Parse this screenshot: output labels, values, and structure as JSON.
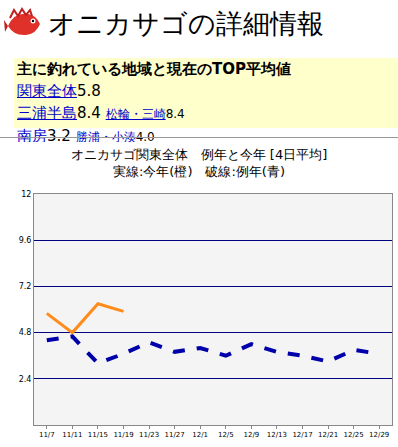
{
  "header": {
    "title": "オニカサゴの詳細情報"
  },
  "summary": {
    "heading": "主に釣れている地域と現在のTOP平均値",
    "rows": [
      {
        "area": "関東全体",
        "value": "5.8"
      },
      {
        "area": "三浦半島",
        "value": "8.4",
        "spot": "松輪・三崎",
        "spot_value": "8.4"
      },
      {
        "area": "南房",
        "value": "3.2",
        "spot": "勝浦・小湊",
        "spot_value": "4.0"
      }
    ]
  },
  "chart_data": {
    "type": "line",
    "title": "オニカサゴ関東全体　例年と今年 [4日平均]",
    "subtitle": "実線:今年(橙)　破線:例年(青)",
    "categories": [
      "11/7",
      "11/11",
      "11/15",
      "11/19",
      "11/23",
      "11/27",
      "12/1",
      "12/5",
      "12/9",
      "12/13",
      "12/17",
      "12/21",
      "12/25",
      "12/29"
    ],
    "series": [
      {
        "name": "今年",
        "color": "#ff8c1a",
        "line_style": "solid",
        "values": [
          5.8,
          4.8,
          6.3,
          5.9,
          null,
          null,
          null,
          null,
          null,
          null,
          null,
          null,
          null,
          null
        ]
      },
      {
        "name": "例年",
        "color": "#0000aa",
        "line_style": "dash",
        "values": [
          4.4,
          4.6,
          3.2,
          3.7,
          4.3,
          3.8,
          4.0,
          3.6,
          4.2,
          3.8,
          3.6,
          3.3,
          3.9,
          3.7
        ]
      }
    ],
    "ylim": [
      0,
      12
    ],
    "yticks": [
      2.4,
      4.8,
      7.2,
      9.6,
      12
    ],
    "grid": true
  }
}
